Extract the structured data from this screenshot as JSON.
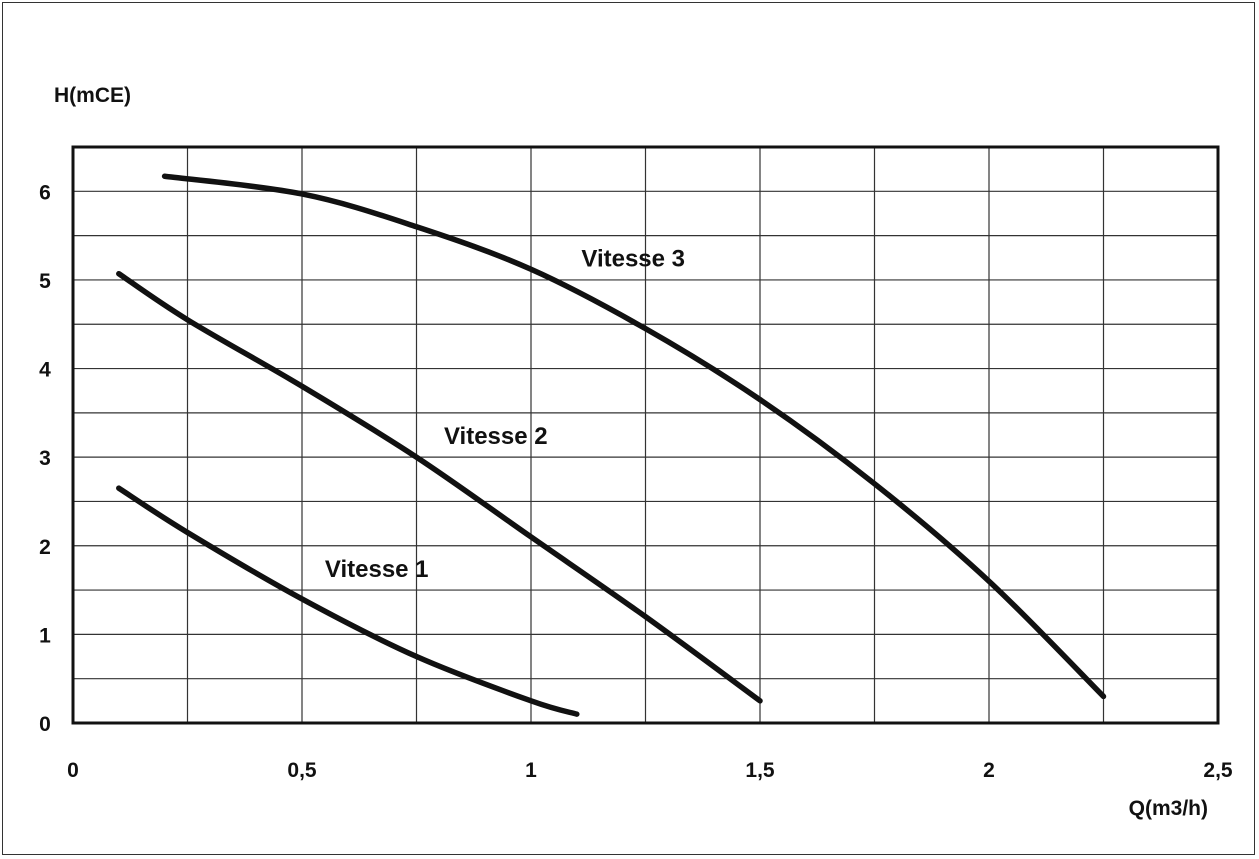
{
  "chart_data": {
    "type": "line",
    "title": "",
    "xlabel": "Q(m3/h)",
    "ylabel": "H(mCE)",
    "xlim": [
      0,
      2.5
    ],
    "ylim": [
      0,
      6.5
    ],
    "x_ticks": [
      {
        "value": 0,
        "label": "0"
      },
      {
        "value": 0.5,
        "label": "0,5"
      },
      {
        "value": 1,
        "label": "1"
      },
      {
        "value": 1.5,
        "label": "1,5"
      },
      {
        "value": 2,
        "label": "2"
      },
      {
        "value": 2.5,
        "label": "2,5"
      }
    ],
    "y_ticks": [
      {
        "value": 0,
        "label": "0"
      },
      {
        "value": 1,
        "label": "1"
      },
      {
        "value": 2,
        "label": "2"
      },
      {
        "value": 3,
        "label": "3"
      },
      {
        "value": 4,
        "label": "4"
      },
      {
        "value": 5,
        "label": "5"
      },
      {
        "value": 6,
        "label": "6"
      }
    ],
    "x_grid_step": 0.25,
    "y_grid_step": 0.5,
    "grid": true,
    "legend": "none",
    "series": [
      {
        "name": "Vitesse 1",
        "x": [
          0.1,
          0.25,
          0.5,
          0.75,
          1.0,
          1.1
        ],
        "y": [
          2.65,
          2.15,
          1.4,
          0.75,
          0.25,
          0.1
        ],
        "label_pos": {
          "x": 0.55,
          "y": 1.65
        }
      },
      {
        "name": "Vitesse 2",
        "x": [
          0.1,
          0.25,
          0.5,
          0.75,
          1.0,
          1.25,
          1.5
        ],
        "y": [
          5.07,
          4.55,
          3.8,
          3.0,
          2.1,
          1.2,
          0.25
        ],
        "label_pos": {
          "x": 0.81,
          "y": 3.15
        }
      },
      {
        "name": "Vitesse 3",
        "x": [
          0.2,
          0.5,
          0.75,
          1.0,
          1.25,
          1.5,
          1.75,
          2.0,
          2.25
        ],
        "y": [
          6.17,
          5.97,
          5.6,
          5.12,
          4.45,
          3.65,
          2.7,
          1.6,
          0.3
        ],
        "label_pos": {
          "x": 1.11,
          "y": 5.15
        }
      }
    ]
  }
}
